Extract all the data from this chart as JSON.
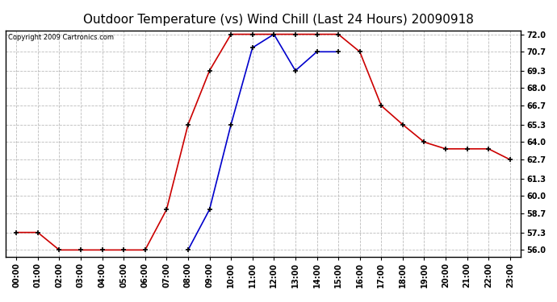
{
  "title": "Outdoor Temperature (vs) Wind Chill (Last 24 Hours) 20090918",
  "copyright": "Copyright 2009 Cartronics.com",
  "hours": [
    "00:00",
    "01:00",
    "02:00",
    "03:00",
    "04:00",
    "05:00",
    "06:00",
    "07:00",
    "08:00",
    "09:00",
    "10:00",
    "11:00",
    "12:00",
    "13:00",
    "14:00",
    "15:00",
    "16:00",
    "17:00",
    "18:00",
    "19:00",
    "20:00",
    "21:00",
    "22:00",
    "23:00"
  ],
  "temp": [
    57.3,
    57.3,
    56.0,
    56.0,
    56.0,
    56.0,
    56.0,
    59.0,
    65.3,
    69.3,
    72.0,
    72.0,
    72.0,
    72.0,
    72.0,
    72.0,
    70.7,
    66.7,
    65.3,
    64.0,
    63.5,
    63.5,
    63.5,
    62.7
  ],
  "wind_chill": [
    null,
    null,
    null,
    null,
    null,
    null,
    null,
    null,
    56.0,
    59.0,
    65.3,
    71.0,
    72.0,
    69.3,
    70.7,
    70.7,
    null,
    null,
    null,
    null,
    null,
    null,
    null,
    null
  ],
  "ylim_min": 55.5,
  "ylim_max": 72.3,
  "yticks": [
    56.0,
    57.3,
    58.7,
    60.0,
    61.3,
    62.7,
    64.0,
    65.3,
    66.7,
    68.0,
    69.3,
    70.7,
    72.0
  ],
  "temp_color": "#cc0000",
  "wind_chill_color": "#0000cc",
  "bg_color": "#ffffff",
  "grid_color": "#bbbbbb",
  "title_fontsize": 11,
  "copyright_fontsize": 6,
  "tick_fontsize": 7,
  "ytick_fontsize": 7
}
